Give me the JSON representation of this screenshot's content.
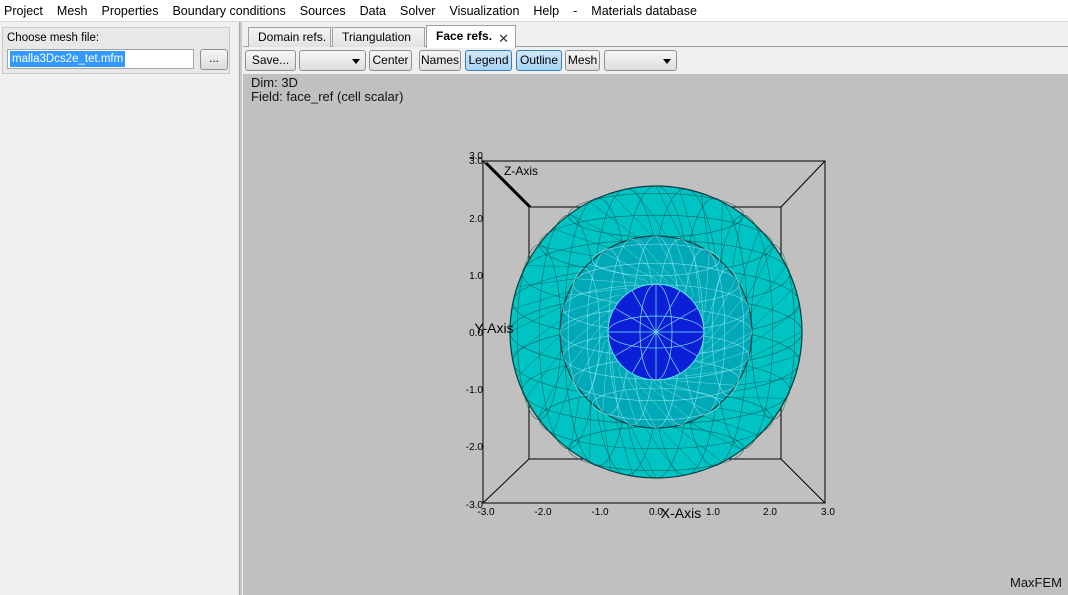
{
  "menu": [
    "Project",
    "Mesh",
    "Properties",
    "Boundary conditions",
    "Sources",
    "Data",
    "Solver",
    "Visualization",
    "Help",
    "-",
    "Materials database"
  ],
  "left_panel": {
    "label": "Choose mesh file:",
    "file_value": "malla3Dcs2e_tet.mfm",
    "browse_label": "..."
  },
  "tabs": [
    {
      "label": "Domain refs."
    },
    {
      "label": "Triangulation"
    },
    {
      "label": "Face refs.",
      "active": true
    }
  ],
  "toolbar": {
    "save_label": "Save...",
    "center_label": "Center",
    "names_label": "Names",
    "legend_label": "Legend",
    "outline_label": "Outline",
    "mesh_label": "Mesh",
    "legend_toggled": true,
    "outline_toggled": true
  },
  "viewport": {
    "dim_text": "Dim: 3D",
    "field_text": "Field: face_ref (cell scalar)",
    "logo": "MaxFEM",
    "background": "#c0c0c0",
    "x_axis_label": "X-Axis",
    "y_axis_label": "Y-Axis",
    "z_axis_label": "Z-Axis",
    "x_ticks": [
      "-3.0",
      "-2.0",
      "-1.0",
      "0.0",
      "1.0",
      "2.0",
      "3.0"
    ],
    "y_ticks": [
      "3.0",
      "2.0",
      "1.0",
      "0.0",
      "-1.0",
      "-2.0",
      "-3.0"
    ],
    "z_ticks_top": [
      "3.0",
      "3.0"
    ],
    "colors": {
      "outer_sphere": "#00c4c4",
      "inner_sphere": "#00a8b8",
      "core": "#0a1fd6",
      "mesh_edges": "#0c3a3a"
    }
  }
}
